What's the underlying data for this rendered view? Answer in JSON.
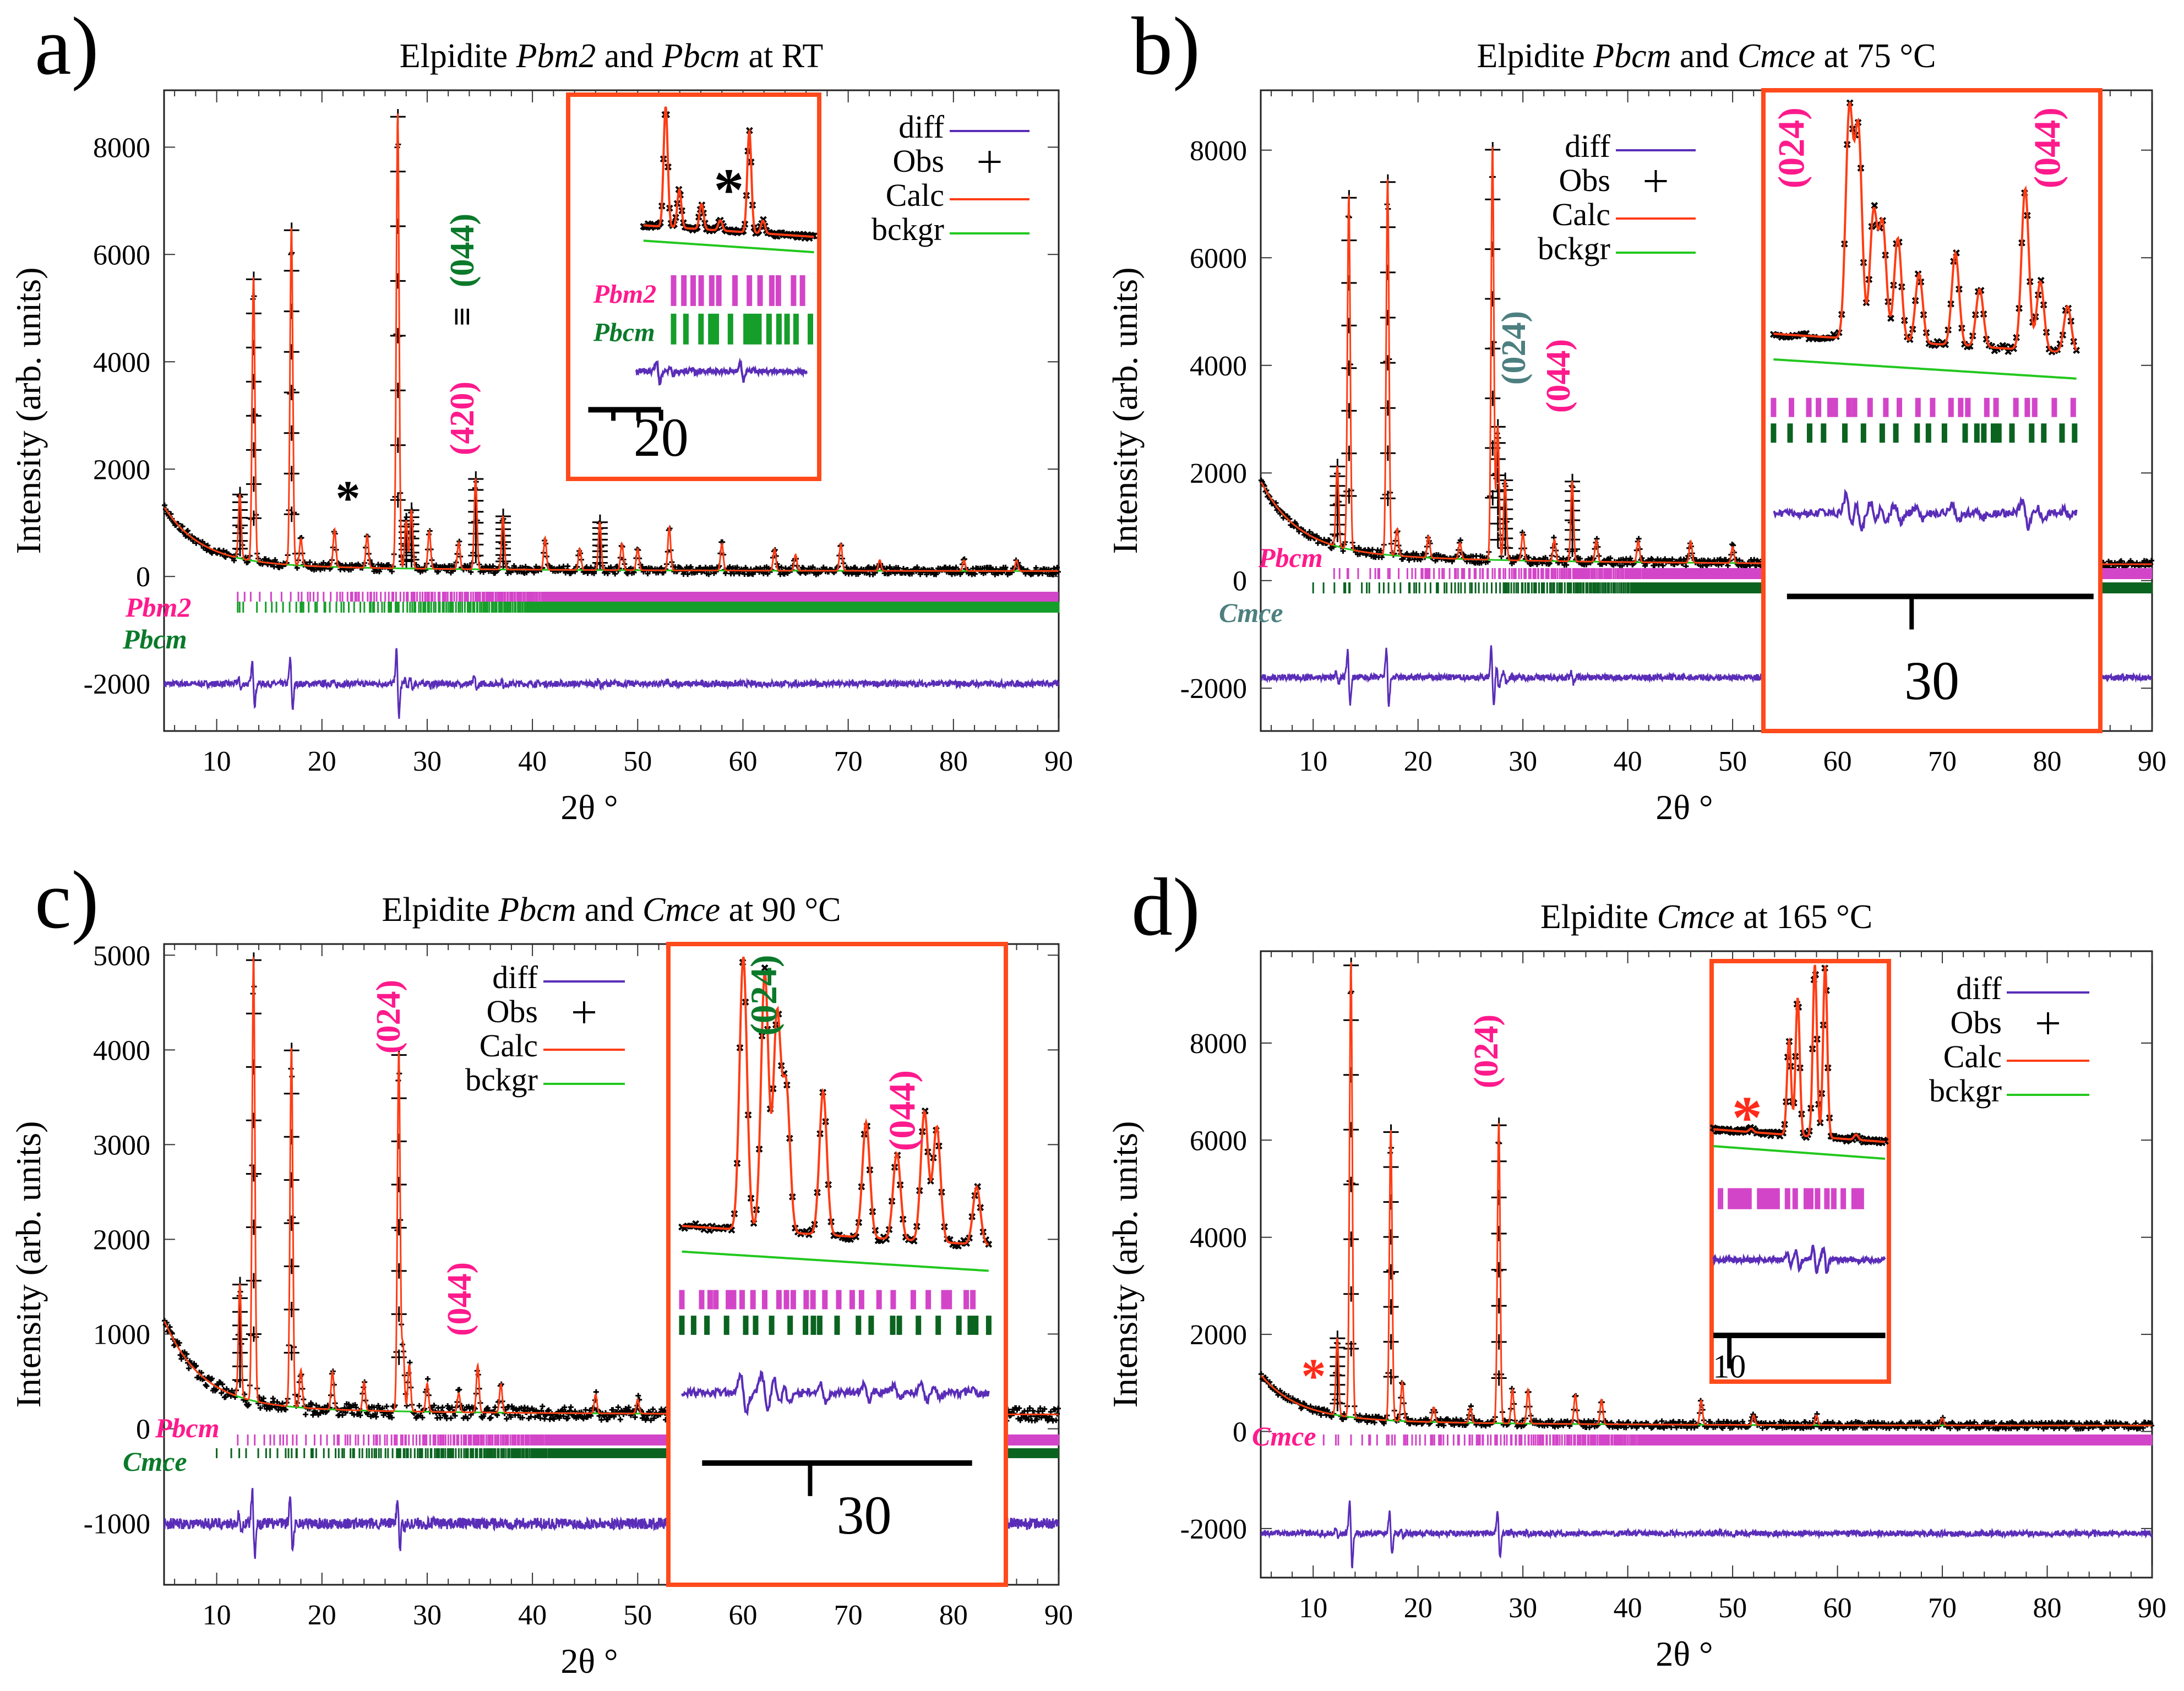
{
  "colors": {
    "calc": "#ff3c14",
    "diff": "#5a2db8",
    "bckgr": "#22c81e",
    "obs": "#000000",
    "phase_magenta": "#d345c8",
    "phase_green": "#169e2a",
    "phase_darkgreen": "#0b6320",
    "label_pink": "#ff1a8c",
    "label_green": "#0a7a2a",
    "label_slate": "#4d7f80",
    "inset_border": "#ff4a1c",
    "star_red": "#ff2a1a"
  },
  "chart_data": [
    {
      "type": "line",
      "panel": "a)",
      "title": [
        {
          "text": "Elpidite ",
          "italic": false
        },
        {
          "text": "Pbm2",
          "italic": true
        },
        {
          "text": " and ",
          "italic": false
        },
        {
          "text": "Pbcm",
          "italic": true
        },
        {
          "text": " at RT",
          "italic": false
        }
      ],
      "xlabel": "2θ °",
      "ylabel": "Intensity (arb. units)",
      "xlim": [
        5,
        90
      ],
      "ylim": [
        -2880,
        9060
      ],
      "xticks": [
        10,
        20,
        30,
        40,
        50,
        60,
        70,
        80,
        90
      ],
      "yticks": [
        -2000,
        0,
        2000,
        4000,
        6000,
        8000
      ],
      "legend": [
        {
          "name": "diff",
          "series": "diff"
        },
        {
          "name": "Obs",
          "series": "obs"
        },
        {
          "name": "Calc",
          "series": "calc"
        },
        {
          "name": "bckgr",
          "series": "bckgr"
        }
      ],
      "background": {
        "base": 100,
        "amp1": 1050,
        "decay1": 3.5,
        "amp2": 150,
        "decay2": 20
      },
      "peaks": [
        [
          12.2,
          1200
        ],
        [
          13.5,
          5300
        ],
        [
          17.1,
          6300
        ],
        [
          18,
          500
        ],
        [
          21.2,
          700
        ],
        [
          24.3,
          600
        ],
        [
          27.2,
          8500
        ],
        [
          28,
          900
        ],
        [
          28.5,
          1100
        ],
        [
          30.2,
          700
        ],
        [
          33,
          500
        ],
        [
          34.6,
          1700
        ],
        [
          37.2,
          1000
        ],
        [
          41.2,
          600
        ],
        [
          44.5,
          400
        ],
        [
          46.4,
          900
        ],
        [
          48.5,
          500
        ],
        [
          50,
          400
        ],
        [
          53,
          800
        ],
        [
          58,
          500
        ],
        [
          63,
          400
        ],
        [
          65,
          300
        ],
        [
          69.3,
          500
        ],
        [
          73,
          200
        ],
        [
          81,
          200
        ],
        [
          86,
          200
        ]
      ],
      "diff_offset": -2000,
      "phases": [
        {
          "name": "Pbm2",
          "color": "phase_magenta",
          "label_color": "label_pink",
          "start": 12
        },
        {
          "name": "Pbcm",
          "color": "phase_green",
          "label_color": "label_green",
          "start": 12
        }
      ],
      "annotations": [
        {
          "text": "(420)",
          "color": "label_pink"
        },
        {
          "text": "≡",
          "color": "obs"
        },
        {
          "text": "(044)",
          "color": "label_green"
        },
        {
          "text": "*",
          "color": "obs"
        }
      ],
      "inset": {
        "peaks": [
          [
            0.13,
            0.95
          ],
          [
            0.21,
            0.3
          ],
          [
            0.34,
            0.2
          ],
          [
            0.45,
            0.08
          ],
          [
            0.62,
            0.8
          ],
          [
            0.7,
            0.1
          ]
        ],
        "phases": [
          "Pbm2",
          "Pbcm"
        ],
        "scale_label": "20",
        "annotations": [
          {
            "text": "*",
            "color": "obs"
          }
        ]
      }
    },
    {
      "type": "line",
      "panel": "b)",
      "title": [
        {
          "text": "Elpidite ",
          "italic": false
        },
        {
          "text": "Pbcm",
          "italic": true
        },
        {
          "text": " and ",
          "italic": false
        },
        {
          "text": "Cmce",
          "italic": true
        },
        {
          "text": " at 75 °C",
          "italic": false
        }
      ],
      "xlabel": "2θ °",
      "ylabel": "Intensity (arb. units)",
      "xlim": [
        5,
        90
      ],
      "ylim": [
        -2796,
        9113
      ],
      "xticks": [
        10,
        20,
        30,
        40,
        50,
        60,
        70,
        80,
        90
      ],
      "yticks": [
        -2000,
        0,
        2000,
        4000,
        6000,
        8000
      ],
      "legend": [
        {
          "name": "diff",
          "series": "diff"
        },
        {
          "name": "Obs",
          "series": "obs"
        },
        {
          "name": "Calc",
          "series": "calc"
        },
        {
          "name": "bckgr",
          "series": "bckgr"
        }
      ],
      "background": {
        "base": 300,
        "amp1": 1300,
        "decay1": 3.5,
        "amp2": 250,
        "decay2": 20
      },
      "peaks": [
        [
          12.3,
          1500
        ],
        [
          13.4,
          6600
        ],
        [
          17.1,
          7000
        ],
        [
          18,
          500
        ],
        [
          21,
          400
        ],
        [
          24,
          300
        ],
        [
          27.1,
          7700
        ],
        [
          27.6,
          2500
        ],
        [
          28.3,
          1500
        ],
        [
          30,
          500
        ],
        [
          33,
          400
        ],
        [
          34.7,
          1500
        ],
        [
          37,
          400
        ],
        [
          41,
          400
        ],
        [
          46,
          400
        ],
        [
          50,
          300
        ],
        [
          58,
          300
        ],
        [
          63,
          300
        ],
        [
          70,
          300
        ],
        [
          80,
          200
        ]
      ],
      "diff_offset": -1800,
      "phases": [
        {
          "name": "Pbcm",
          "color": "phase_magenta",
          "label_color": "label_pink",
          "start": 12
        },
        {
          "name": "Cmce",
          "color": "phase_darkgreen",
          "label_color": "label_slate",
          "start": 10
        }
      ],
      "annotations": [
        {
          "text": "(024)",
          "color": "label_slate"
        },
        {
          "text": "(044)",
          "color": "label_pink"
        }
      ],
      "inset": {
        "peaks": [
          [
            0.25,
            0.98
          ],
          [
            0.28,
            0.9
          ],
          [
            0.33,
            0.55
          ],
          [
            0.36,
            0.5
          ],
          [
            0.41,
            0.45
          ],
          [
            0.48,
            0.3
          ],
          [
            0.6,
            0.4
          ],
          [
            0.68,
            0.25
          ],
          [
            0.83,
            0.7
          ],
          [
            0.88,
            0.3
          ],
          [
            0.97,
            0.2
          ]
        ],
        "phases": [
          "Pbcm",
          "Cmce"
        ],
        "scale_label": "30",
        "annotations": [
          {
            "text": "(024)",
            "color": "label_pink"
          },
          {
            "text": "(044)",
            "color": "label_pink"
          }
        ]
      }
    },
    {
      "type": "line",
      "panel": "c)",
      "title": [
        {
          "text": "Elpidite ",
          "italic": false
        },
        {
          "text": "Pbcm",
          "italic": true
        },
        {
          "text": " and ",
          "italic": false
        },
        {
          "text": "Cmce",
          "italic": true
        },
        {
          "text": " at 90 °C",
          "italic": false
        }
      ],
      "xlabel": "2θ °",
      "ylabel": "Intensity (arb. units)",
      "xlim": [
        5,
        90
      ],
      "ylim": [
        -1647,
        5118
      ],
      "xticks": [
        10,
        20,
        30,
        40,
        50,
        60,
        70,
        80,
        90
      ],
      "yticks": [
        -1000,
        0,
        1000,
        2000,
        3000,
        4000,
        5000
      ],
      "legend": [
        {
          "name": "diff",
          "series": "diff"
        },
        {
          "name": "Obs",
          "series": "obs"
        },
        {
          "name": "Calc",
          "series": "calc"
        },
        {
          "name": "bckgr",
          "series": "bckgr"
        }
      ],
      "background": {
        "base": 150,
        "amp1": 900,
        "decay1": 3.5,
        "amp2": 100,
        "decay2": 20
      },
      "peaks": [
        [
          12.2,
          1200
        ],
        [
          13.5,
          4700
        ],
        [
          17.1,
          3800
        ],
        [
          18,
          400
        ],
        [
          21,
          400
        ],
        [
          24,
          300
        ],
        [
          27.3,
          3800
        ],
        [
          27.7,
          700
        ],
        [
          28.3,
          500
        ],
        [
          30,
          300
        ],
        [
          33,
          200
        ],
        [
          34.8,
          500
        ],
        [
          37,
          300
        ],
        [
          46,
          200
        ],
        [
          50,
          150
        ],
        [
          58,
          150
        ],
        [
          70,
          150
        ]
      ],
      "diff_offset": -1000,
      "phases": [
        {
          "name": "Pbcm",
          "color": "phase_magenta",
          "label_color": "label_pink",
          "start": 12
        },
        {
          "name": "Cmce",
          "color": "phase_darkgreen",
          "label_color": "label_green",
          "start": 10
        }
      ],
      "annotations": [
        {
          "text": "(024)",
          "color": "label_pink"
        },
        {
          "text": "(044)",
          "color": "label_pink"
        }
      ],
      "inset": {
        "peaks": [
          [
            0.2,
            0.95
          ],
          [
            0.27,
            0.9
          ],
          [
            0.31,
            0.75
          ],
          [
            0.34,
            0.5
          ],
          [
            0.46,
            0.5
          ],
          [
            0.6,
            0.4
          ],
          [
            0.7,
            0.3
          ],
          [
            0.79,
            0.45
          ],
          [
            0.83,
            0.4
          ],
          [
            0.96,
            0.2
          ]
        ],
        "phases": [
          "Pbcm",
          "Cmce"
        ],
        "scale_label": "30",
        "annotations": [
          {
            "text": "(024)",
            "color": "label_green"
          },
          {
            "text": "(044)",
            "color": "label_pink"
          }
        ]
      }
    },
    {
      "type": "line",
      "panel": "d)",
      "title": [
        {
          "text": "Elpidite ",
          "italic": false
        },
        {
          "text": "Cmce",
          "italic": true
        },
        {
          "text": " at 165 °C",
          "italic": false
        }
      ],
      "xlabel": "2θ °",
      "ylabel": "Intensity (arb. units)",
      "xlim": [
        5,
        90
      ],
      "ylim": [
        -3010,
        9892
      ],
      "xticks": [
        10,
        20,
        30,
        40,
        50,
        60,
        70,
        80,
        90
      ],
      "yticks": [
        -2000,
        0,
        2000,
        4000,
        6000,
        8000
      ],
      "legend": [
        {
          "name": "diff",
          "series": "diff"
        },
        {
          "name": "Obs",
          "series": "obs"
        },
        {
          "name": "Calc",
          "series": "calc"
        },
        {
          "name": "bckgr",
          "series": "bckgr"
        }
      ],
      "background": {
        "base": 120,
        "amp1": 900,
        "decay1": 3.5,
        "amp2": 150,
        "decay2": 20
      },
      "peaks": [
        [
          12.3,
          1600
        ],
        [
          13.6,
          9400
        ],
        [
          17.4,
          6000
        ],
        [
          18.5,
          800
        ],
        [
          21.5,
          300
        ],
        [
          25,
          300
        ],
        [
          27.7,
          6200
        ],
        [
          29,
          700
        ],
        [
          30.5,
          700
        ],
        [
          35,
          600
        ],
        [
          37.5,
          500
        ],
        [
          47,
          500
        ],
        [
          52,
          200
        ],
        [
          58,
          200
        ],
        [
          70,
          150
        ]
      ],
      "diff_offset": -2100,
      "phases": [
        {
          "name": "Cmce",
          "color": "phase_magenta",
          "label_color": "label_pink",
          "start": 11
        }
      ],
      "annotations": [
        {
          "text": "(024)",
          "color": "label_pink"
        },
        {
          "text": "*",
          "color": "star_red"
        }
      ],
      "inset": {
        "peaks": [
          [
            0.22,
            0.02
          ],
          [
            0.44,
            0.55
          ],
          [
            0.49,
            0.8
          ],
          [
            0.59,
            1.0
          ],
          [
            0.65,
            1.0
          ],
          [
            0.83,
            0.03
          ]
        ],
        "phases": [
          "Cmce"
        ],
        "scale_label": "10",
        "annotations": [
          {
            "text": "*",
            "color": "star_red"
          }
        ]
      }
    }
  ]
}
